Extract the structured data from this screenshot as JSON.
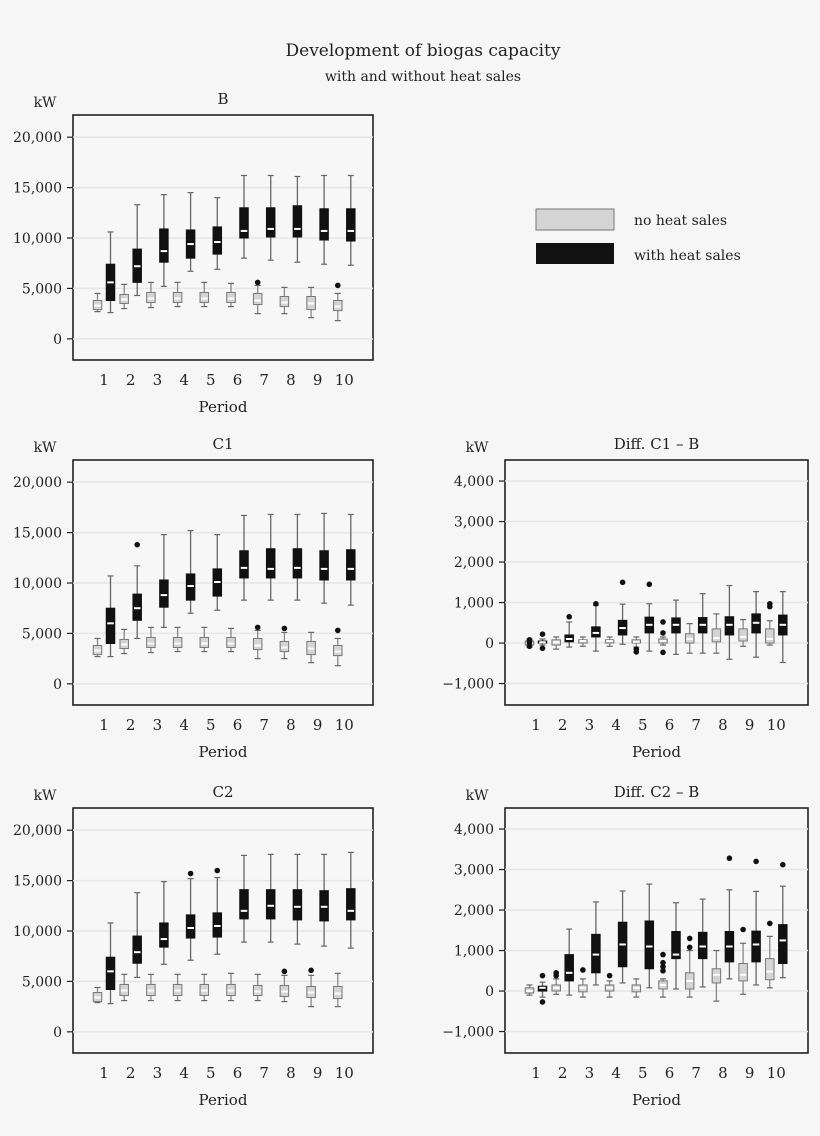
{
  "chart_data": {
    "type": "boxplot",
    "title": "Development of biogas capacity",
    "subtitle": "with and without heat sales",
    "legend": {
      "placement": "right of panel B",
      "entries": [
        {
          "name": "no heat sales",
          "color": "#d4d4d4"
        },
        {
          "name": "with heat sales",
          "color": "#111111"
        }
      ]
    },
    "categories": [
      "1",
      "2",
      "3",
      "4",
      "5",
      "6",
      "7",
      "8",
      "9",
      "10"
    ],
    "box_format": "[min, q1, median, q3, max, outliers]",
    "panels": [
      {
        "title": "B",
        "ylabel": "kW",
        "xlabel": "Period",
        "ylim": [
          -2100,
          22200
        ],
        "yticks": [
          0,
          5000,
          10000,
          15000,
          20000
        ],
        "ytick_labels": [
          "0",
          "5,000",
          "10,000",
          "15,000",
          "20,000"
        ],
        "no_heat": [
          [
            2700,
            2900,
            3300,
            3800,
            4500,
            []
          ],
          [
            3000,
            3500,
            3900,
            4400,
            5400,
            []
          ],
          [
            3100,
            3600,
            4000,
            4600,
            5600,
            []
          ],
          [
            3200,
            3600,
            4000,
            4600,
            5600,
            []
          ],
          [
            3200,
            3600,
            4000,
            4600,
            5600,
            []
          ],
          [
            3200,
            3600,
            4000,
            4600,
            5500,
            []
          ],
          [
            2500,
            3400,
            3800,
            4500,
            5300,
            [
              5600
            ]
          ],
          [
            2500,
            3200,
            3600,
            4200,
            5100,
            []
          ],
          [
            2100,
            2900,
            3500,
            4200,
            5100,
            []
          ],
          [
            1800,
            2800,
            3200,
            3800,
            4500,
            [
              5300
            ]
          ]
        ],
        "with_heat": [
          [
            2600,
            3800,
            5600,
            7400,
            10600,
            []
          ],
          [
            4300,
            5600,
            7200,
            8900,
            13300,
            []
          ],
          [
            5200,
            7600,
            8700,
            10900,
            14300,
            []
          ],
          [
            6700,
            8000,
            9400,
            10800,
            14500,
            []
          ],
          [
            6900,
            8400,
            9600,
            11100,
            14000,
            []
          ],
          [
            8000,
            10000,
            10700,
            13000,
            16200,
            []
          ],
          [
            7800,
            10100,
            10900,
            13000,
            16200,
            []
          ],
          [
            7600,
            10100,
            10900,
            13200,
            16100,
            []
          ],
          [
            7400,
            9800,
            10700,
            12900,
            16200,
            []
          ],
          [
            7300,
            9700,
            10700,
            12900,
            16200,
            []
          ]
        ]
      },
      {
        "title": "C1",
        "ylabel": "kW",
        "xlabel": "Period",
        "ylim": [
          -2100,
          22200
        ],
        "yticks": [
          0,
          5000,
          10000,
          15000,
          20000
        ],
        "ytick_labels": [
          "0",
          "5,000",
          "10,000",
          "15,000",
          "20,000"
        ],
        "no_heat": [
          [
            2700,
            2900,
            3300,
            3800,
            4500,
            []
          ],
          [
            3000,
            3500,
            3900,
            4400,
            5400,
            []
          ],
          [
            3100,
            3600,
            4000,
            4600,
            5600,
            []
          ],
          [
            3200,
            3600,
            4000,
            4600,
            5600,
            []
          ],
          [
            3200,
            3600,
            4000,
            4600,
            5600,
            []
          ],
          [
            3200,
            3600,
            4000,
            4600,
            5500,
            []
          ],
          [
            2500,
            3400,
            3800,
            4500,
            5300,
            [
              5600
            ]
          ],
          [
            2500,
            3200,
            3600,
            4200,
            5100,
            [
              5500
            ]
          ],
          [
            2100,
            2900,
            3500,
            4200,
            5100,
            []
          ],
          [
            1800,
            2800,
            3200,
            3800,
            4500,
            [
              5300
            ]
          ]
        ],
        "with_heat": [
          [
            2700,
            4000,
            6000,
            7500,
            10700,
            []
          ],
          [
            4500,
            6300,
            7500,
            8900,
            11700,
            [
              13800
            ]
          ],
          [
            5600,
            7600,
            8800,
            10300,
            14800,
            []
          ],
          [
            7000,
            8300,
            9700,
            10900,
            15200,
            []
          ],
          [
            7300,
            8700,
            10100,
            11400,
            14800,
            []
          ],
          [
            8300,
            10500,
            11500,
            13200,
            16700,
            []
          ],
          [
            8300,
            10500,
            11400,
            13400,
            16800,
            []
          ],
          [
            8300,
            10500,
            11500,
            13400,
            16800,
            []
          ],
          [
            8000,
            10300,
            11400,
            13200,
            16900,
            []
          ],
          [
            7800,
            10300,
            11400,
            13300,
            16800,
            []
          ]
        ]
      },
      {
        "title": "C2",
        "ylabel": "kW",
        "xlabel": "Period",
        "ylim": [
          -2100,
          22200
        ],
        "yticks": [
          0,
          5000,
          10000,
          15000,
          20000
        ],
        "ytick_labels": [
          "0",
          "5,000",
          "10,000",
          "15,000",
          "20,000"
        ],
        "no_heat": [
          [
            2900,
            3000,
            3400,
            3900,
            4400,
            []
          ],
          [
            3100,
            3600,
            4100,
            4700,
            5700,
            []
          ],
          [
            3100,
            3600,
            4100,
            4700,
            5700,
            []
          ],
          [
            3100,
            3600,
            4100,
            4700,
            5700,
            []
          ],
          [
            3100,
            3600,
            4100,
            4700,
            5700,
            []
          ],
          [
            3100,
            3600,
            4100,
            4700,
            5800,
            []
          ],
          [
            3100,
            3600,
            4000,
            4600,
            5700,
            []
          ],
          [
            3000,
            3500,
            4000,
            4600,
            5600,
            [
              6000
            ]
          ],
          [
            2500,
            3400,
            3900,
            4500,
            5600,
            [
              6100
            ]
          ],
          [
            2500,
            3300,
            3800,
            4500,
            5800,
            []
          ]
        ],
        "with_heat": [
          [
            2800,
            4200,
            6000,
            7400,
            10800,
            []
          ],
          [
            5400,
            6800,
            7900,
            9500,
            13800,
            []
          ],
          [
            6700,
            8400,
            9200,
            10800,
            14900,
            []
          ],
          [
            7100,
            9300,
            10300,
            11600,
            15200,
            [
              15700
            ]
          ],
          [
            7700,
            9400,
            10500,
            11800,
            15300,
            [
              16000
            ]
          ],
          [
            8900,
            11200,
            12000,
            14100,
            17500,
            []
          ],
          [
            8900,
            11200,
            12500,
            14100,
            17600,
            []
          ],
          [
            8700,
            11100,
            12400,
            14100,
            17600,
            []
          ],
          [
            8500,
            11000,
            12400,
            14000,
            17600,
            []
          ],
          [
            8300,
            11100,
            12000,
            14200,
            17800,
            []
          ]
        ]
      },
      {
        "title": "Diff. C1 – B",
        "ylabel": "kW",
        "xlabel": "Period",
        "ylim": [
          -1530,
          4520
        ],
        "yticks": [
          -1000,
          0,
          1000,
          2000,
          3000,
          4000
        ],
        "ytick_labels": [
          "−1,000",
          "0",
          "1,000",
          "2,000",
          "3,000",
          "4,000"
        ],
        "no_heat": [
          [
            -100,
            -50,
            0,
            50,
            100,
            [
              -80,
              0,
              50,
              80
            ]
          ],
          [
            -150,
            -50,
            20,
            80,
            150,
            []
          ],
          [
            -80,
            0,
            50,
            80,
            150,
            []
          ],
          [
            -80,
            0,
            50,
            80,
            150,
            []
          ],
          [
            -100,
            0,
            30,
            80,
            150,
            [
              -150,
              -220
            ]
          ],
          [
            -50,
            0,
            50,
            100,
            150,
            [
              250,
              520,
              -230
            ]
          ],
          [
            -250,
            0,
            100,
            230,
            480,
            []
          ],
          [
            -250,
            30,
            120,
            350,
            720,
            []
          ],
          [
            -80,
            50,
            150,
            350,
            580,
            []
          ],
          [
            -50,
            0,
            100,
            350,
            550,
            [
              900,
              970
            ]
          ]
        ],
        "with_heat": [
          [
            -50,
            0,
            20,
            50,
            100,
            [
              220,
              -130
            ]
          ],
          [
            -100,
            30,
            100,
            200,
            520,
            [
              650
            ]
          ],
          [
            -200,
            150,
            250,
            400,
            930,
            [
              970
            ]
          ],
          [
            -30,
            200,
            370,
            560,
            960,
            [
              1500
            ]
          ],
          [
            -200,
            250,
            450,
            640,
            970,
            [
              1450
            ]
          ],
          [
            -280,
            250,
            450,
            620,
            1060,
            []
          ],
          [
            -250,
            250,
            450,
            630,
            1220,
            []
          ],
          [
            -400,
            200,
            450,
            650,
            1420,
            []
          ],
          [
            -350,
            250,
            500,
            720,
            1270,
            []
          ],
          [
            -480,
            200,
            450,
            690,
            1270,
            []
          ]
        ]
      },
      {
        "title": "Diff. C2 – B",
        "ylabel": "kW",
        "xlabel": "Period",
        "ylim": [
          -1530,
          4520
        ],
        "yticks": [
          -1000,
          0,
          1000,
          2000,
          3000,
          4000
        ],
        "ytick_labels": [
          "−1,000",
          "0",
          "1,000",
          "2,000",
          "3,000",
          "4,000"
        ],
        "no_heat": [
          [
            -100,
            -50,
            0,
            80,
            150,
            []
          ],
          [
            -80,
            0,
            80,
            150,
            300,
            [
              380,
              450
            ]
          ],
          [
            -150,
            -20,
            80,
            150,
            300,
            [
              520
            ]
          ],
          [
            -150,
            0,
            80,
            150,
            250,
            [
              380
            ]
          ],
          [
            -150,
            -20,
            80,
            150,
            300,
            []
          ],
          [
            -150,
            50,
            150,
            250,
            300,
            [
              500,
              600,
              700,
              900
            ]
          ],
          [
            -150,
            50,
            250,
            450,
            1000,
            [
              1080,
              1300
            ]
          ],
          [
            -250,
            200,
            400,
            550,
            1000,
            []
          ],
          [
            -80,
            250,
            400,
            680,
            1180,
            [
              1520
            ]
          ],
          [
            80,
            280,
            480,
            800,
            1350,
            [
              1670
            ]
          ]
        ],
        "with_heat": [
          [
            -150,
            0,
            80,
            120,
            220,
            [
              380,
              -270
            ]
          ],
          [
            -100,
            250,
            450,
            900,
            1530,
            []
          ],
          [
            150,
            450,
            900,
            1400,
            2200,
            []
          ],
          [
            200,
            600,
            1150,
            1700,
            2470,
            []
          ],
          [
            80,
            550,
            1100,
            1730,
            2640,
            []
          ],
          [
            50,
            800,
            900,
            1470,
            2180,
            []
          ],
          [
            100,
            800,
            1100,
            1450,
            2270,
            []
          ],
          [
            300,
            720,
            1100,
            1470,
            2500,
            [
              3280
            ]
          ],
          [
            150,
            720,
            1150,
            1480,
            2460,
            [
              3200
            ]
          ],
          [
            330,
            680,
            1250,
            1640,
            2590,
            [
              3120
            ]
          ]
        ]
      }
    ]
  }
}
